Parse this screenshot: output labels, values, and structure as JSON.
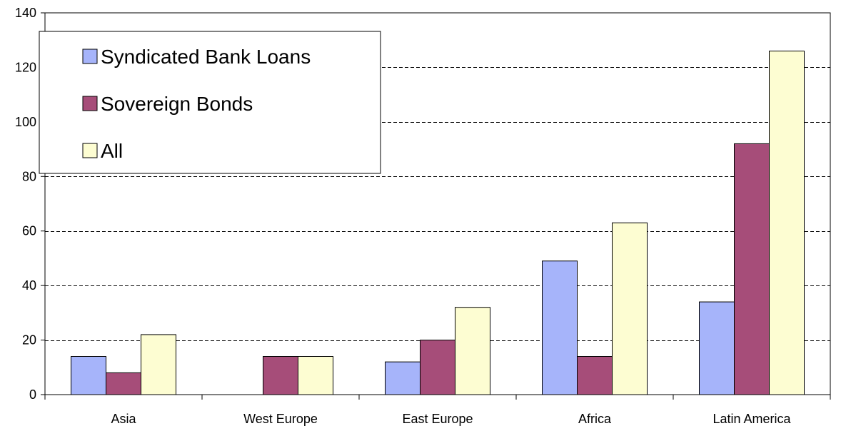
{
  "chart_data": {
    "type": "bar",
    "categories": [
      "Asia",
      "West Europe",
      "East Europe",
      "Africa",
      "Latin America"
    ],
    "series": [
      {
        "name": "Syndicated Bank Loans",
        "values": [
          14,
          0,
          12,
          49,
          34
        ],
        "color": "#a6b4fa"
      },
      {
        "name": "Sovereign Bonds",
        "values": [
          8,
          14,
          20,
          14,
          92
        ],
        "color": "#a64d79"
      },
      {
        "name": "All",
        "values": [
          22,
          14,
          32,
          63,
          126
        ],
        "color": "#fdfdd2"
      }
    ],
    "ylim": [
      0,
      140
    ],
    "yticks": [
      0,
      20,
      40,
      60,
      80,
      100,
      120,
      140
    ],
    "ytick_labels": [
      "0",
      "20",
      "40",
      "60",
      "80",
      "100",
      "120",
      "140"
    ],
    "grid": "horizontal dashed",
    "legend_position": "top-left",
    "title": "",
    "xlabel": "",
    "ylabel": ""
  }
}
